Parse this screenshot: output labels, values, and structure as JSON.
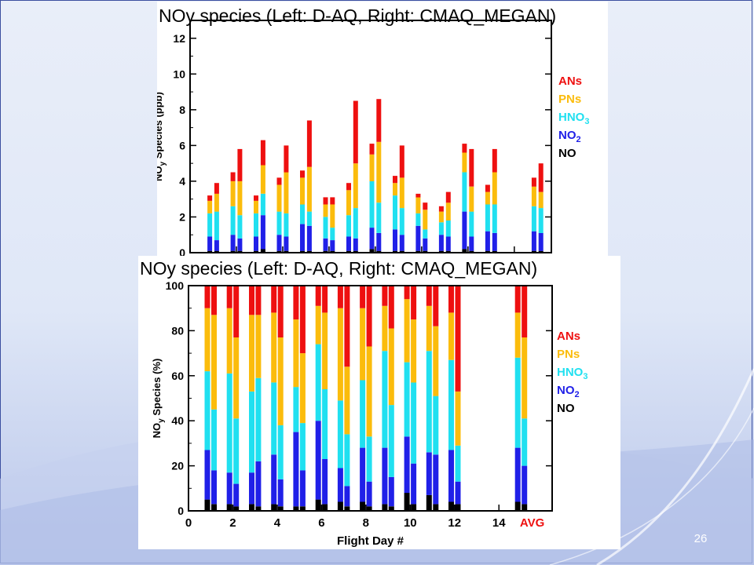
{
  "colors": {
    "NO": "#000000",
    "NO2": "#2020e8",
    "HNO3": "#20e0f0",
    "PNs": "#fbbc0c",
    "ANs": "#ee1010",
    "avg_label": "#ee1010"
  },
  "legend": [
    {
      "key": "ANs",
      "label": "ANs",
      "sub": ""
    },
    {
      "key": "PNs",
      "label": "PNs",
      "sub": ""
    },
    {
      "key": "HNO3",
      "label": "HNO",
      "sub": "3"
    },
    {
      "key": "NO2",
      "label": "NO",
      "sub": "2"
    },
    {
      "key": "NO",
      "label": "NO",
      "sub": ""
    }
  ],
  "chart_data": [
    {
      "type": "bar",
      "stacked": true,
      "title": "NOy species (Left: D-AQ, Right: CMAQ_MEGAN)",
      "ylabel_main": "NO",
      "ylabel_sub": "y",
      "ylabel_rest": " Species (ppb)",
      "xlabel": "",
      "ylim": [
        0,
        13
      ],
      "yticks": [
        0,
        2,
        4,
        6,
        8,
        10,
        12
      ],
      "xlim": [
        0,
        15.6
      ],
      "series_order": [
        "NO",
        "NO2",
        "HNO3",
        "PNs",
        "ANs"
      ],
      "bars": [
        {
          "x": 0.85,
          "values": [
            0.1,
            0.8,
            1.3,
            0.7,
            0.3
          ]
        },
        {
          "x": 1.15,
          "values": [
            0.1,
            0.6,
            1.6,
            1.0,
            0.6
          ]
        },
        {
          "x": 1.85,
          "values": [
            0.1,
            0.9,
            1.6,
            1.4,
            0.5
          ]
        },
        {
          "x": 2.15,
          "values": [
            0.1,
            0.7,
            1.3,
            1.9,
            1.8
          ]
        },
        {
          "x": 2.85,
          "values": [
            0.1,
            0.8,
            1.3,
            0.7,
            0.3
          ]
        },
        {
          "x": 3.15,
          "values": [
            0.2,
            1.9,
            1.2,
            1.6,
            1.4
          ]
        },
        {
          "x": 3.85,
          "values": [
            0.1,
            0.9,
            1.3,
            1.5,
            0.4
          ]
        },
        {
          "x": 4.15,
          "values": [
            0.1,
            0.8,
            1.3,
            2.3,
            1.5
          ]
        },
        {
          "x": 4.85,
          "values": [
            0.1,
            1.5,
            1.1,
            1.5,
            0.4
          ]
        },
        {
          "x": 5.15,
          "values": [
            0.1,
            1.4,
            0.8,
            2.5,
            2.6
          ]
        },
        {
          "x": 5.85,
          "values": [
            0.1,
            0.7,
            1.2,
            0.7,
            0.4
          ]
        },
        {
          "x": 6.15,
          "values": [
            0.1,
            0.6,
            0.7,
            1.3,
            0.4
          ]
        },
        {
          "x": 6.85,
          "values": [
            0.1,
            0.8,
            1.2,
            1.4,
            0.4
          ]
        },
        {
          "x": 7.15,
          "values": [
            0.1,
            0.7,
            1.7,
            2.5,
            3.5
          ]
        },
        {
          "x": 7.85,
          "values": [
            0.2,
            1.2,
            2.6,
            1.5,
            0.6
          ]
        },
        {
          "x": 8.15,
          "values": [
            0.1,
            1.0,
            1.7,
            3.4,
            2.4
          ]
        },
        {
          "x": 8.85,
          "values": [
            0.1,
            1.2,
            1.9,
            0.7,
            0.4
          ]
        },
        {
          "x": 9.15,
          "values": [
            0.1,
            0.9,
            1.5,
            1.7,
            1.8
          ]
        },
        {
          "x": 9.85,
          "values": [
            0.1,
            1.4,
            0.7,
            0.9,
            0.2
          ]
        },
        {
          "x": 10.15,
          "values": [
            0.1,
            0.7,
            0.5,
            1.1,
            0.4
          ]
        },
        {
          "x": 10.85,
          "values": [
            0.1,
            0.9,
            0.7,
            0.6,
            0.3
          ]
        },
        {
          "x": 11.15,
          "values": [
            0.1,
            0.8,
            0.9,
            1.0,
            0.6
          ]
        },
        {
          "x": 11.85,
          "values": [
            0.2,
            2.1,
            2.2,
            1.1,
            0.5
          ]
        },
        {
          "x": 12.15,
          "values": [
            0.1,
            0.8,
            1.4,
            1.4,
            2.1
          ]
        },
        {
          "x": 12.85,
          "values": [
            0.1,
            1.1,
            1.5,
            0.7,
            0.4
          ]
        },
        {
          "x": 13.15,
          "values": [
            0.1,
            1.0,
            1.6,
            1.8,
            1.3
          ]
        },
        {
          "x": 14.85,
          "values": [
            0.1,
            1.1,
            1.4,
            1.1,
            0.5
          ]
        },
        {
          "x": 15.15,
          "values": [
            0.1,
            1.0,
            1.4,
            0.9,
            1.6
          ]
        }
      ]
    },
    {
      "type": "bar",
      "stacked": true,
      "title": "NOy species (Left: D-AQ, Right: CMAQ_MEGAN)",
      "ylabel_main": "NO",
      "ylabel_sub": "y",
      "ylabel_rest": " Species (%)",
      "xlabel": "Flight Day #",
      "ylim": [
        0,
        100
      ],
      "yticks": [
        0,
        20,
        40,
        60,
        80,
        100
      ],
      "xlim": [
        0,
        16.4
      ],
      "xticks": [
        0,
        2,
        4,
        6,
        8,
        10,
        12,
        14
      ],
      "avg_label": "AVG",
      "avg_x": 15.5,
      "series_order": [
        "NO",
        "NO2",
        "HNO3",
        "PNs",
        "ANs"
      ],
      "bars": [
        {
          "x": 0.85,
          "values": [
            5,
            22,
            35,
            28,
            10
          ]
        },
        {
          "x": 1.15,
          "values": [
            3,
            15,
            27,
            42,
            13
          ]
        },
        {
          "x": 1.85,
          "values": [
            3,
            14,
            44,
            29,
            10
          ]
        },
        {
          "x": 2.15,
          "values": [
            2,
            10,
            29,
            36,
            23
          ]
        },
        {
          "x": 2.85,
          "values": [
            3,
            14,
            36,
            34,
            13
          ]
        },
        {
          "x": 3.15,
          "values": [
            2,
            20,
            37,
            28,
            13
          ]
        },
        {
          "x": 3.85,
          "values": [
            3,
            22,
            32,
            31,
            12
          ]
        },
        {
          "x": 4.15,
          "values": [
            2,
            12,
            24,
            39,
            23
          ]
        },
        {
          "x": 4.85,
          "values": [
            2,
            33,
            20,
            30,
            15
          ]
        },
        {
          "x": 5.15,
          "values": [
            2,
            16,
            21,
            31,
            30
          ]
        },
        {
          "x": 5.85,
          "values": [
            5,
            35,
            34,
            17,
            9
          ]
        },
        {
          "x": 6.15,
          "values": [
            3,
            20,
            31,
            34,
            12
          ]
        },
        {
          "x": 6.85,
          "values": [
            4,
            15,
            30,
            41,
            10
          ]
        },
        {
          "x": 7.15,
          "values": [
            2,
            9,
            23,
            30,
            36
          ]
        },
        {
          "x": 7.85,
          "values": [
            4,
            24,
            30,
            32,
            10
          ]
        },
        {
          "x": 8.15,
          "values": [
            2,
            11,
            20,
            40,
            27
          ]
        },
        {
          "x": 8.85,
          "values": [
            3,
            25,
            43,
            20,
            9
          ]
        },
        {
          "x": 9.15,
          "values": [
            2,
            13,
            32,
            34,
            19
          ]
        },
        {
          "x": 9.85,
          "values": [
            8,
            25,
            33,
            28,
            6
          ]
        },
        {
          "x": 10.15,
          "values": [
            3,
            18,
            36,
            28,
            15
          ]
        },
        {
          "x": 10.85,
          "values": [
            7,
            19,
            45,
            20,
            9
          ]
        },
        {
          "x": 11.15,
          "values": [
            3,
            22,
            26,
            31,
            18
          ]
        },
        {
          "x": 11.85,
          "values": [
            4,
            23,
            40,
            21,
            12
          ]
        },
        {
          "x": 12.15,
          "values": [
            3,
            10,
            16,
            24,
            47
          ]
        },
        {
          "x": 14.85,
          "values": [
            4,
            24,
            40,
            20,
            12
          ]
        },
        {
          "x": 15.15,
          "values": [
            3,
            17,
            21,
            36,
            23
          ]
        }
      ]
    }
  ],
  "footer": {
    "slide_number": "26"
  }
}
